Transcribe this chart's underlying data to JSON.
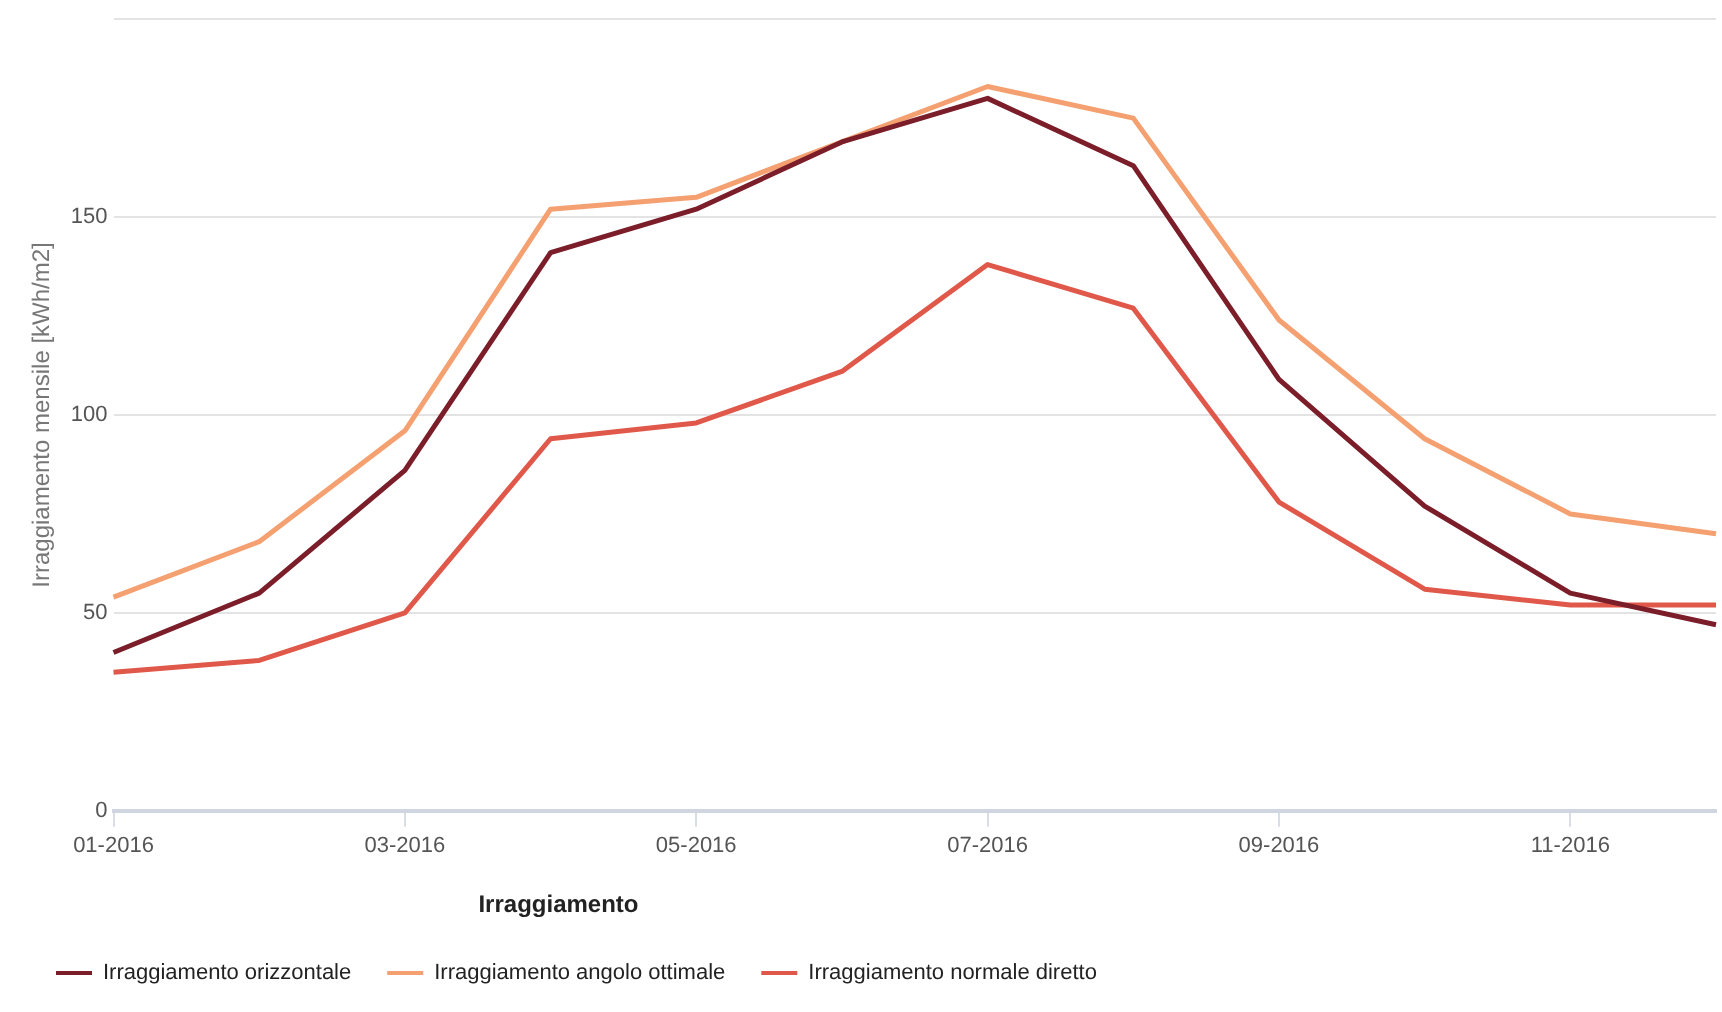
{
  "chart_data": {
    "type": "line",
    "ylabel": "Irraggiamento mensile [kWh/m2]",
    "legend_title": "Irraggiamento",
    "categories": [
      "01-2016",
      null,
      "03-2016",
      null,
      "05-2016",
      null,
      "07-2016",
      null,
      "09-2016",
      null,
      "11-2016",
      null
    ],
    "series": [
      {
        "name": "Irraggiamento orizzontale",
        "color": "#7b1e2a",
        "values": [
          40,
          55,
          86,
          141,
          152,
          169,
          180,
          163,
          109,
          77,
          55,
          47
        ]
      },
      {
        "name": "Irraggiamento angolo ottimale",
        "color": "#f4a070",
        "values": [
          54,
          68,
          96,
          152,
          155,
          169,
          183,
          175,
          124,
          94,
          75,
          70
        ]
      },
      {
        "name": "Irraggiamento normale diretto",
        "color": "#e0584a",
        "values": [
          35,
          38,
          50,
          94,
          98,
          111,
          138,
          127,
          78,
          56,
          52,
          52
        ]
      }
    ],
    "ylim": [
      0,
      200
    ],
    "yticks": [
      0,
      50,
      100,
      150,
      {
        "value": 200,
        "label": null
      }
    ],
    "grid": "y",
    "legend": "bottom left",
    "marker": "none",
    "line_style": "solid"
  }
}
